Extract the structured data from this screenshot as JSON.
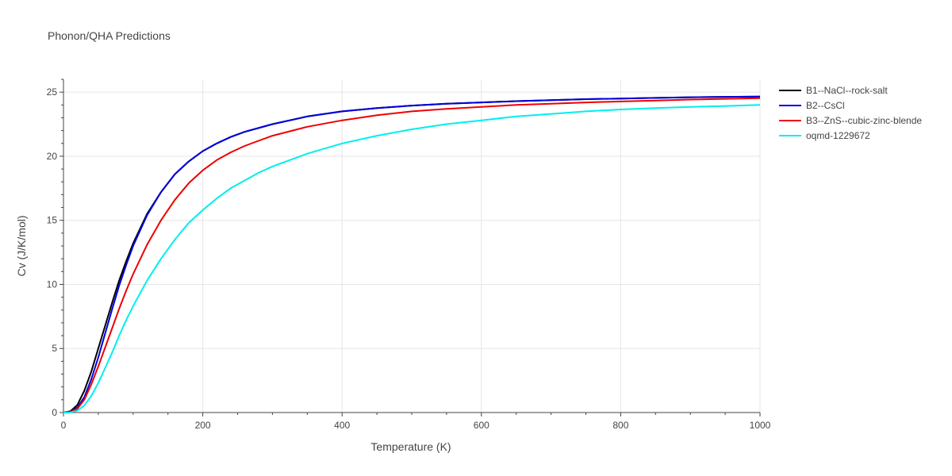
{
  "colors": {
    "grid": "#e5e5e5",
    "axis": "#444444",
    "background": "#ffffff"
  },
  "chart_data": {
    "type": "line",
    "title": "Phonon/QHA Predictions",
    "xlabel": "Temperature (K)",
    "ylabel": "Cv (J/K/mol)",
    "xlim": [
      0,
      1000
    ],
    "ylim": [
      0,
      26
    ],
    "xticks": [
      0,
      200,
      400,
      600,
      800,
      1000
    ],
    "yticks": [
      0,
      5,
      10,
      15,
      20,
      25
    ],
    "grid": true,
    "legend_position": "top-right",
    "series": [
      {
        "name": "B1--NaCl--rock-salt",
        "color": "#000000",
        "x": [
          0,
          10,
          20,
          30,
          40,
          50,
          60,
          70,
          80,
          90,
          100,
          120,
          140,
          160,
          180,
          200,
          220,
          240,
          260,
          280,
          300,
          350,
          400,
          450,
          500,
          550,
          600,
          650,
          700,
          750,
          800,
          850,
          900,
          950,
          1000
        ],
        "y": [
          0,
          0.1,
          0.6,
          1.7,
          3.2,
          5.0,
          6.8,
          8.6,
          10.3,
          11.8,
          13.2,
          15.5,
          17.2,
          18.6,
          19.6,
          20.4,
          21.0,
          21.5,
          21.9,
          22.2,
          22.5,
          23.1,
          23.5,
          23.75,
          23.95,
          24.1,
          24.2,
          24.3,
          24.38,
          24.45,
          24.5,
          24.55,
          24.6,
          24.63,
          24.65
        ]
      },
      {
        "name": "B2--CsCl",
        "color": "#0000dd",
        "x": [
          0,
          10,
          20,
          30,
          40,
          50,
          60,
          70,
          80,
          90,
          100,
          120,
          140,
          160,
          180,
          200,
          220,
          240,
          260,
          280,
          300,
          350,
          400,
          450,
          500,
          550,
          600,
          650,
          700,
          750,
          800,
          850,
          900,
          950,
          1000
        ],
        "y": [
          0,
          0.05,
          0.4,
          1.2,
          2.6,
          4.3,
          6.2,
          8.1,
          9.9,
          11.5,
          13.0,
          15.4,
          17.2,
          18.6,
          19.6,
          20.4,
          21.0,
          21.5,
          21.9,
          22.2,
          22.5,
          23.1,
          23.5,
          23.75,
          23.95,
          24.1,
          24.2,
          24.3,
          24.38,
          24.45,
          24.5,
          24.55,
          24.6,
          24.63,
          24.65
        ]
      },
      {
        "name": "B3--ZnS--cubic-zinc-blende",
        "color": "#ee0000",
        "x": [
          0,
          10,
          20,
          30,
          40,
          50,
          60,
          70,
          80,
          90,
          100,
          120,
          140,
          160,
          180,
          200,
          220,
          240,
          260,
          280,
          300,
          350,
          400,
          450,
          500,
          550,
          600,
          650,
          700,
          750,
          800,
          850,
          900,
          950,
          1000
        ],
        "y": [
          0,
          0.04,
          0.3,
          1.0,
          2.2,
          3.6,
          5.1,
          6.6,
          8.1,
          9.5,
          10.8,
          13.1,
          15.0,
          16.6,
          17.9,
          18.9,
          19.7,
          20.3,
          20.8,
          21.2,
          21.6,
          22.3,
          22.8,
          23.2,
          23.5,
          23.7,
          23.85,
          24.0,
          24.1,
          24.2,
          24.27,
          24.35,
          24.42,
          24.48,
          24.53
        ]
      },
      {
        "name": "oqmd-1229672",
        "color": "#00eeee",
        "x": [
          0,
          10,
          20,
          30,
          40,
          50,
          60,
          70,
          80,
          90,
          100,
          120,
          140,
          160,
          180,
          200,
          220,
          240,
          260,
          280,
          300,
          350,
          400,
          450,
          500,
          550,
          600,
          650,
          700,
          750,
          800,
          850,
          900,
          950,
          1000
        ],
        "y": [
          0,
          0.02,
          0.15,
          0.55,
          1.3,
          2.3,
          3.5,
          4.7,
          6.0,
          7.2,
          8.3,
          10.3,
          12.0,
          13.5,
          14.8,
          15.8,
          16.7,
          17.5,
          18.1,
          18.7,
          19.2,
          20.2,
          21.0,
          21.6,
          22.1,
          22.5,
          22.8,
          23.1,
          23.3,
          23.5,
          23.65,
          23.75,
          23.85,
          23.92,
          24.0
        ]
      }
    ]
  }
}
